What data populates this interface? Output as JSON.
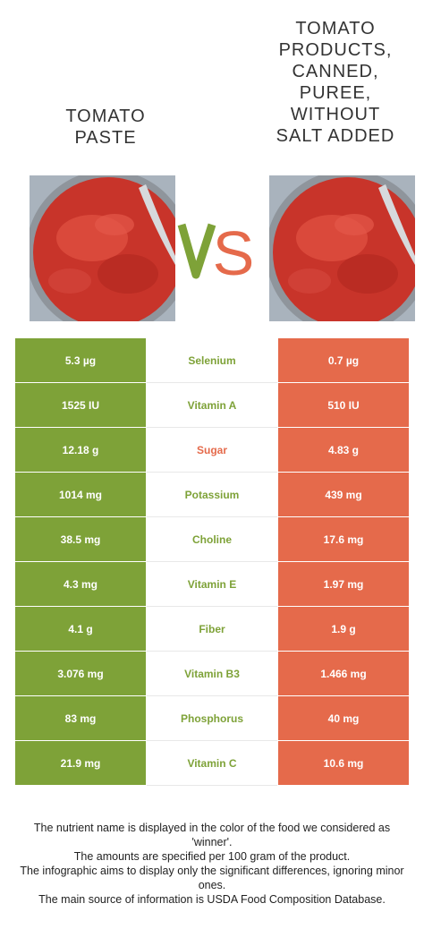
{
  "header": {
    "left_title": "TOMATO\nPASTE",
    "right_title": "TOMATO\nPRODUCTS,\nCANNED,\nPUREE,\nWITHOUT\nSALT ADDED",
    "vs_label": "VS"
  },
  "colors": {
    "left": "#7ea238",
    "right": "#e56a4b",
    "neutral": "#333333"
  },
  "images": {
    "left": "tomato-paste-bowl-image",
    "right": "tomato-puree-bowl-image"
  },
  "rows": [
    {
      "nutrient": "Selenium",
      "left": "5.3 µg",
      "right": "0.7 µg",
      "winner": "left"
    },
    {
      "nutrient": "Vitamin A",
      "left": "1525 IU",
      "right": "510 IU",
      "winner": "left"
    },
    {
      "nutrient": "Sugar",
      "left": "12.18 g",
      "right": "4.83 g",
      "winner": "right"
    },
    {
      "nutrient": "Potassium",
      "left": "1014 mg",
      "right": "439 mg",
      "winner": "left"
    },
    {
      "nutrient": "Choline",
      "left": "38.5 mg",
      "right": "17.6 mg",
      "winner": "left"
    },
    {
      "nutrient": "Vitamin E",
      "left": "4.3 mg",
      "right": "1.97 mg",
      "winner": "left"
    },
    {
      "nutrient": "Fiber",
      "left": "4.1 g",
      "right": "1.9 g",
      "winner": "left"
    },
    {
      "nutrient": "Vitamin B3",
      "left": "3.076 mg",
      "right": "1.466 mg",
      "winner": "left"
    },
    {
      "nutrient": "Phosphorus",
      "left": "83 mg",
      "right": "40 mg",
      "winner": "left"
    },
    {
      "nutrient": "Vitamin C",
      "left": "21.9 mg",
      "right": "10.6 mg",
      "winner": "left"
    }
  ],
  "footer": {
    "line1": "The nutrient name is displayed in the color of the food we considered as 'winner'.",
    "line2": "The amounts are specified per 100 gram of the product.",
    "line3": "The infographic aims to display only the significant differences, ignoring minor ones.",
    "line4": "The main source of information is USDA Food Composition Database."
  }
}
